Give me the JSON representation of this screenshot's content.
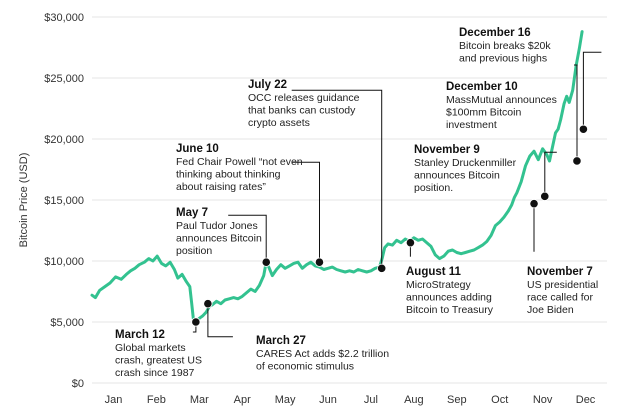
{
  "chart_data": {
    "type": "line",
    "title": "",
    "ylabel": "Bitcoin Price (USD)",
    "xlabel": "",
    "ylim": [
      0,
      30000
    ],
    "xlim": [
      0,
      12
    ],
    "grid": "horizontal",
    "y_ticks": [
      {
        "value": 0,
        "label": "$0"
      },
      {
        "value": 5000,
        "label": "$5,000"
      },
      {
        "value": 10000,
        "label": "$10,000"
      },
      {
        "value": 15000,
        "label": "$15,000"
      },
      {
        "value": 20000,
        "label": "$20,000"
      },
      {
        "value": 25000,
        "label": "$25,000"
      },
      {
        "value": 30000,
        "label": "$30,000"
      }
    ],
    "x_ticks": [
      {
        "value": 0.5,
        "label": "Jan"
      },
      {
        "value": 1.5,
        "label": "Feb"
      },
      {
        "value": 2.5,
        "label": "Mar"
      },
      {
        "value": 3.5,
        "label": "Apr"
      },
      {
        "value": 4.5,
        "label": "May"
      },
      {
        "value": 5.5,
        "label": "Jun"
      },
      {
        "value": 6.5,
        "label": "Jul"
      },
      {
        "value": 7.5,
        "label": "Aug"
      },
      {
        "value": 8.5,
        "label": "Sep"
      },
      {
        "value": 9.5,
        "label": "Oct"
      },
      {
        "value": 10.5,
        "label": "Nov"
      },
      {
        "value": 11.5,
        "label": "Dec"
      }
    ],
    "line_color": "#33c290",
    "series": [
      {
        "values": [
          [
            0.0,
            7200
          ],
          [
            0.08,
            7000
          ],
          [
            0.18,
            7600
          ],
          [
            0.3,
            7900
          ],
          [
            0.42,
            8200
          ],
          [
            0.55,
            8700
          ],
          [
            0.68,
            8500
          ],
          [
            0.8,
            8900
          ],
          [
            0.9,
            9200
          ],
          [
            1.0,
            9400
          ],
          [
            1.1,
            9700
          ],
          [
            1.22,
            9900
          ],
          [
            1.32,
            10200
          ],
          [
            1.42,
            10000
          ],
          [
            1.52,
            10400
          ],
          [
            1.62,
            9800
          ],
          [
            1.72,
            9600
          ],
          [
            1.82,
            9900
          ],
          [
            1.92,
            9300
          ],
          [
            2.0,
            8600
          ],
          [
            2.1,
            8900
          ],
          [
            2.2,
            8300
          ],
          [
            2.28,
            7900
          ],
          [
            2.32,
            6600
          ],
          [
            2.36,
            5300
          ],
          [
            2.42,
            5000
          ],
          [
            2.5,
            5300
          ],
          [
            2.58,
            5500
          ],
          [
            2.66,
            5800
          ],
          [
            2.74,
            6300
          ],
          [
            2.8,
            6400
          ],
          [
            2.9,
            6700
          ],
          [
            3.0,
            6500
          ],
          [
            3.1,
            6800
          ],
          [
            3.2,
            6900
          ],
          [
            3.3,
            7000
          ],
          [
            3.4,
            6900
          ],
          [
            3.5,
            7100
          ],
          [
            3.6,
            7400
          ],
          [
            3.7,
            7700
          ],
          [
            3.8,
            7500
          ],
          [
            3.9,
            8000
          ],
          [
            4.0,
            8800
          ],
          [
            4.06,
            9900
          ],
          [
            4.12,
            9500
          ],
          [
            4.2,
            8800
          ],
          [
            4.3,
            9300
          ],
          [
            4.4,
            9700
          ],
          [
            4.5,
            9400
          ],
          [
            4.6,
            9600
          ],
          [
            4.7,
            9800
          ],
          [
            4.8,
            9900
          ],
          [
            4.9,
            9400
          ],
          [
            5.0,
            9700
          ],
          [
            5.1,
            9900
          ],
          [
            5.2,
            9600
          ],
          [
            5.3,
            9500
          ],
          [
            5.4,
            9300
          ],
          [
            5.5,
            9400
          ],
          [
            5.6,
            9500
          ],
          [
            5.7,
            9300
          ],
          [
            5.8,
            9200
          ],
          [
            5.9,
            9100
          ],
          [
            6.0,
            9200
          ],
          [
            6.1,
            9100
          ],
          [
            6.2,
            9300
          ],
          [
            6.3,
            9200
          ],
          [
            6.4,
            9100
          ],
          [
            6.5,
            9200
          ],
          [
            6.6,
            9400
          ],
          [
            6.7,
            9500
          ],
          [
            6.76,
            10200
          ],
          [
            6.82,
            11100
          ],
          [
            6.9,
            11400
          ],
          [
            7.0,
            11300
          ],
          [
            7.1,
            11700
          ],
          [
            7.2,
            11500
          ],
          [
            7.3,
            11800
          ],
          [
            7.4,
            11600
          ],
          [
            7.5,
            11900
          ],
          [
            7.6,
            11700
          ],
          [
            7.7,
            11800
          ],
          [
            7.8,
            11500
          ],
          [
            7.9,
            11200
          ],
          [
            8.0,
            10500
          ],
          [
            8.1,
            10200
          ],
          [
            8.2,
            10400
          ],
          [
            8.3,
            10800
          ],
          [
            8.4,
            10900
          ],
          [
            8.5,
            10700
          ],
          [
            8.6,
            10600
          ],
          [
            8.7,
            10700
          ],
          [
            8.8,
            10800
          ],
          [
            8.9,
            10900
          ],
          [
            9.0,
            11100
          ],
          [
            9.1,
            11300
          ],
          [
            9.2,
            11600
          ],
          [
            9.3,
            12100
          ],
          [
            9.4,
            12900
          ],
          [
            9.5,
            13200
          ],
          [
            9.6,
            13600
          ],
          [
            9.7,
            14100
          ],
          [
            9.78,
            14600
          ],
          [
            9.84,
            15200
          ],
          [
            9.9,
            15600
          ],
          [
            10.0,
            16500
          ],
          [
            10.1,
            17800
          ],
          [
            10.2,
            18600
          ],
          [
            10.3,
            19000
          ],
          [
            10.4,
            18300
          ],
          [
            10.5,
            19200
          ],
          [
            10.6,
            18700
          ],
          [
            10.66,
            18200
          ],
          [
            10.74,
            19500
          ],
          [
            10.8,
            20500
          ],
          [
            10.86,
            20800
          ],
          [
            10.92,
            21600
          ],
          [
            11.0,
            22900
          ],
          [
            11.06,
            23500
          ],
          [
            11.12,
            23000
          ],
          [
            11.2,
            24000
          ],
          [
            11.28,
            26000
          ],
          [
            11.36,
            27500
          ],
          [
            11.42,
            28800
          ]
        ]
      }
    ],
    "events": [
      {
        "x": 2.42,
        "y": 5000,
        "title": "March 12",
        "lines": [
          "Global markets",
          "crash, greatest US",
          "crash since 1987"
        ]
      },
      {
        "x": 2.7,
        "y": 6500,
        "title": "March 27",
        "lines": [
          "CARES Act adds $2.2 trillion",
          "of economic stimulus"
        ]
      },
      {
        "x": 4.06,
        "y": 9900,
        "title": "May 7",
        "lines": [
          "Paul Tudor Jones",
          "announces Bitcoin",
          "position"
        ]
      },
      {
        "x": 5.3,
        "y": 9900,
        "title": "June 10",
        "lines": [
          "Fed Chair Powell “not even",
          "thinking about thinking",
          "about raising rates”"
        ]
      },
      {
        "x": 6.75,
        "y": 9400,
        "title": "July 22",
        "lines": [
          "OCC releases guidance",
          "that banks can custody",
          "crypto assets"
        ]
      },
      {
        "x": 7.42,
        "y": 11500,
        "title": "August 11",
        "lines": [
          "MicroStrategy",
          "announces adding",
          "Bitcoin to Treasury"
        ]
      },
      {
        "x": 10.3,
        "y": 14700,
        "title": "November 7",
        "lines": [
          "US presidential",
          "race called for",
          "Joe Biden"
        ]
      },
      {
        "x": 10.55,
        "y": 15300,
        "title": "November 9",
        "lines": [
          "Stanley Druckenmiller",
          "announces Bitcoin",
          "position."
        ]
      },
      {
        "x": 11.3,
        "y": 18200,
        "title": "December 10",
        "lines": [
          "MassMutual announces",
          "$100mm Bitcoin",
          "investment"
        ]
      },
      {
        "x": 11.45,
        "y": 20800,
        "title": "December 16",
        "lines": [
          "Bitcoin breaks $20k",
          "and previous highs"
        ]
      }
    ]
  }
}
